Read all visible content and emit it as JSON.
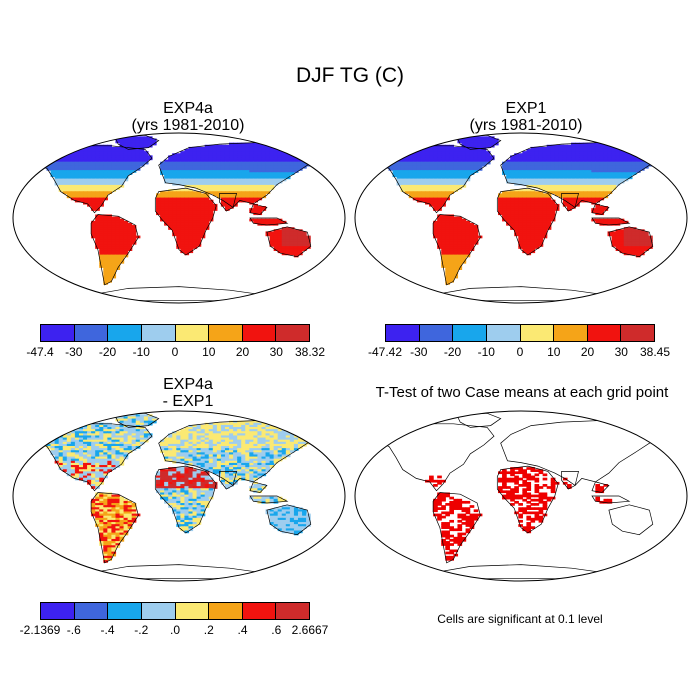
{
  "title": "DJF TG (C)",
  "panels": [
    {
      "id": "p1",
      "title1": "EXP4a",
      "title2": "(yrs 1981-2010)",
      "mode": "abs"
    },
    {
      "id": "p2",
      "title1": "EXP1",
      "title2": "(yrs 1981-2010)",
      "mode": "abs"
    },
    {
      "id": "p3",
      "title1": "EXP4a",
      "title2": "- EXP1",
      "mode": "diff"
    },
    {
      "id": "p4",
      "title1": "T-Test of two Case means at each grid point",
      "title2": "",
      "mode": "ttest"
    }
  ],
  "colorbars": [
    {
      "labels": [
        "-47.4",
        "-30",
        "-20",
        "-10",
        "0",
        "10",
        "20",
        "30",
        "38.32"
      ]
    },
    {
      "labels": [
        "-47.42",
        "-30",
        "-20",
        "-10",
        "0",
        "10",
        "20",
        "30",
        "38.45"
      ]
    },
    {
      "labels": [
        "-2.1369",
        "-.6",
        "-.4",
        "-.2",
        ".0",
        ".2",
        ".4",
        ".6",
        "2.6667"
      ]
    }
  ],
  "palette": [
    "#3d22f0",
    "#3f66dd",
    "#18a6ec",
    "#9ecdee",
    "#fbe973",
    "#f5a418",
    "#f1130f",
    "#cf2b2b"
  ],
  "significance_color": "#ee0000",
  "significance_note": "Cells are significant at 0.1 level"
}
